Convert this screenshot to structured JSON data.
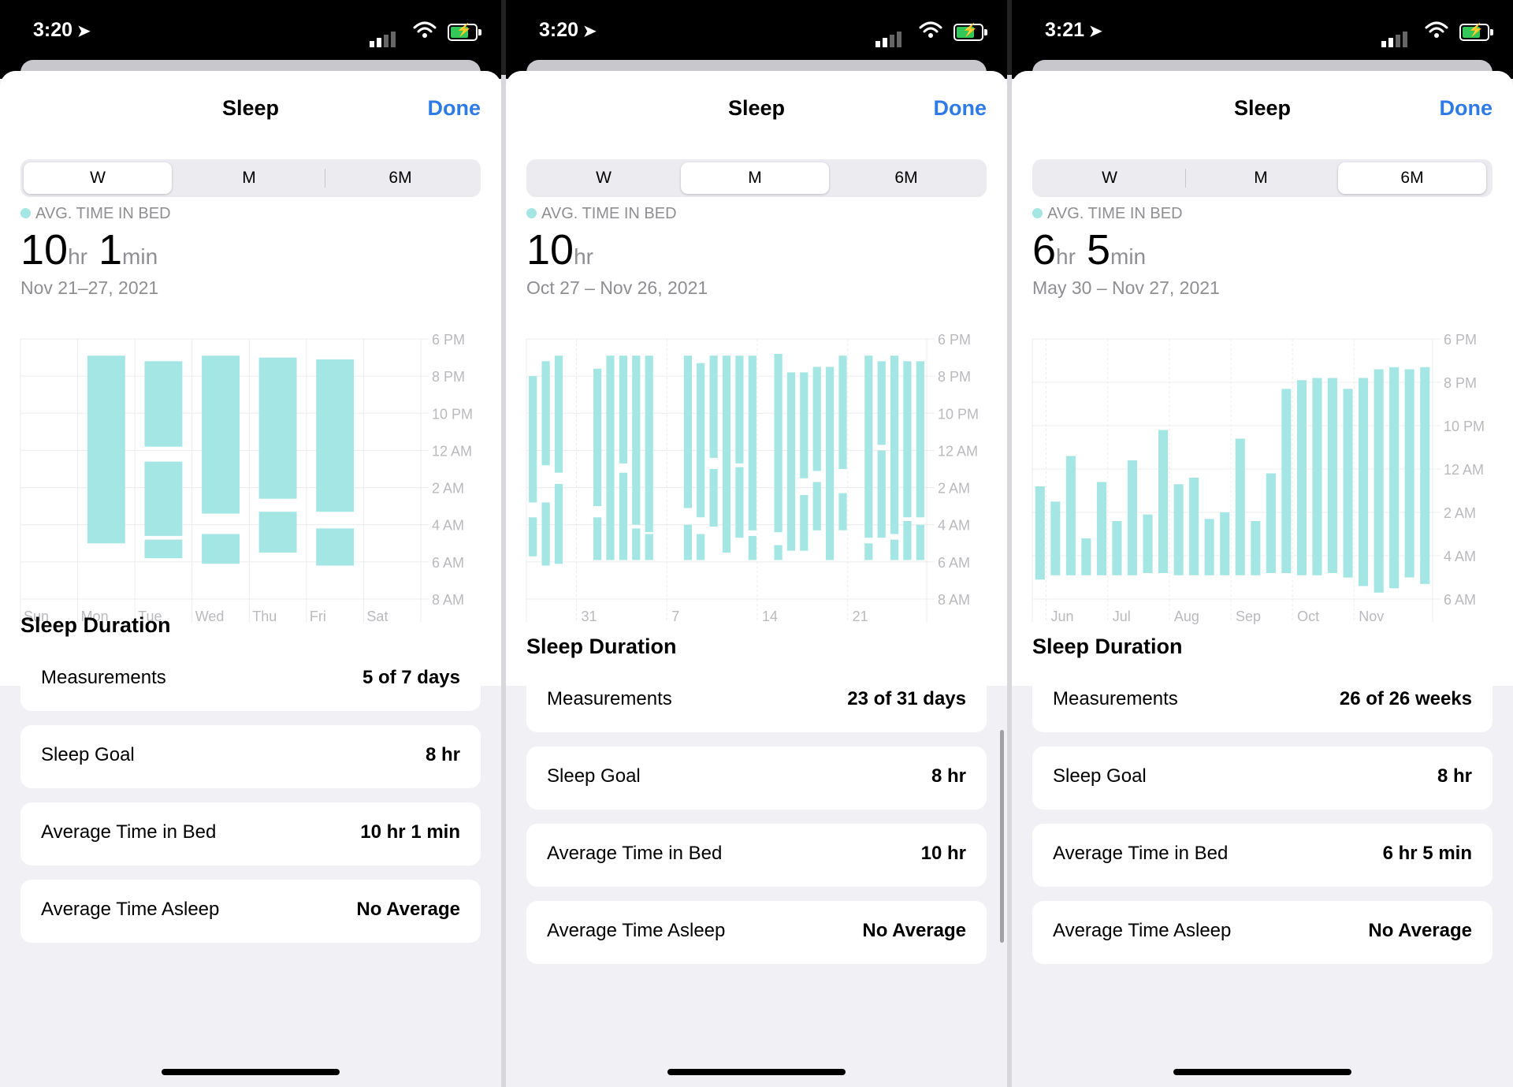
{
  "screens": [
    {
      "status_time": "3:20",
      "nav_title": "Sleep",
      "done_label": "Done",
      "segments": [
        "W",
        "M",
        "6M"
      ],
      "active_segment": "W",
      "avg_label": "AVG. TIME IN BED",
      "avg_value": [
        {
          "num": "10",
          "unit": "hr"
        },
        {
          "num": "1",
          "unit": "min"
        }
      ],
      "date_range": "Nov 21–27, 2021",
      "chart_data": {
        "type": "bar",
        "subtype": "floating-range",
        "series": [],
        "y_axis_labels": [
          "6 PM",
          "8 PM",
          "10 PM",
          "12 AM",
          "2 AM",
          "4 AM",
          "6 AM",
          "8 AM"
        ],
        "y_axis_hours_since_6pm": [
          0,
          2,
          4,
          6,
          8,
          10,
          12,
          14
        ],
        "ylim_hours_since_6pm": [
          0,
          14
        ],
        "x_tick_labels": [
          "Sun",
          "Mon",
          "Tue",
          "Wed",
          "Thu",
          "Fri",
          "Sat"
        ],
        "x_tick_positions": [
          0,
          1,
          2,
          3,
          4,
          5,
          6
        ],
        "x_count": 7,
        "bar_color": "#a4e6e3",
        "bars": [
          {
            "x": 1,
            "start": 0.9,
            "end": 11.0
          },
          {
            "x": 2,
            "start": 1.2,
            "end": 5.8
          },
          {
            "x": 2,
            "start": 6.6,
            "end": 10.6
          },
          {
            "x": 2,
            "start": 10.8,
            "end": 11.8
          },
          {
            "x": 3,
            "start": 0.9,
            "end": 9.4
          },
          {
            "x": 3,
            "start": 10.5,
            "end": 12.1
          },
          {
            "x": 4,
            "start": 1.0,
            "end": 8.6
          },
          {
            "x": 4,
            "start": 9.3,
            "end": 11.5
          },
          {
            "x": 5,
            "start": 1.1,
            "end": 9.3
          },
          {
            "x": 5,
            "start": 10.2,
            "end": 12.2
          }
        ],
        "grid": true
      },
      "section_title": "Sleep Duration",
      "rows": [
        {
          "label": "Measurements",
          "value": "5 of 7 days"
        },
        {
          "label": "Sleep Goal",
          "value": "8 hr"
        },
        {
          "label": "Average Time in Bed",
          "value": "10 hr 1 min"
        },
        {
          "label": "Average Time Asleep",
          "value": "No Average"
        }
      ]
    },
    {
      "status_time": "3:20",
      "nav_title": "Sleep",
      "done_label": "Done",
      "segments": [
        "W",
        "M",
        "6M"
      ],
      "active_segment": "M",
      "avg_label": "AVG. TIME IN BED",
      "avg_value": [
        {
          "num": "10",
          "unit": "hr"
        }
      ],
      "date_range": "Oct 27 – Nov 26, 2021",
      "chart_data": {
        "type": "bar",
        "subtype": "floating-range",
        "series": [],
        "y_axis_labels": [
          "6 PM",
          "8 PM",
          "10 PM",
          "12 AM",
          "2 AM",
          "4 AM",
          "6 AM",
          "8 AM"
        ],
        "y_axis_hours_since_6pm": [
          0,
          2,
          4,
          6,
          8,
          10,
          12,
          14
        ],
        "ylim_hours_since_6pm": [
          0,
          14
        ],
        "x_tick_labels": [
          "31",
          "7",
          "14",
          "21"
        ],
        "x_tick_positions": [
          4,
          11,
          18,
          25
        ],
        "x_count": 31,
        "bar_color": "#a4e6e3",
        "bars": [
          {
            "x": 0,
            "start": 2.0,
            "end": 8.8
          },
          {
            "x": 0,
            "start": 9.6,
            "end": 11.7
          },
          {
            "x": 1,
            "start": 1.2,
            "end": 6.8
          },
          {
            "x": 1,
            "start": 8.8,
            "end": 12.2
          },
          {
            "x": 2,
            "start": 0.9,
            "end": 7.2
          },
          {
            "x": 2,
            "start": 7.8,
            "end": 12.1
          },
          {
            "x": 5,
            "start": 1.6,
            "end": 9.0
          },
          {
            "x": 5,
            "start": 9.6,
            "end": 11.9
          },
          {
            "x": 6,
            "start": 0.9,
            "end": 11.9
          },
          {
            "x": 7,
            "start": 0.9,
            "end": 6.7
          },
          {
            "x": 7,
            "start": 7.2,
            "end": 11.9
          },
          {
            "x": 8,
            "start": 0.9,
            "end": 10.0
          },
          {
            "x": 8,
            "start": 10.2,
            "end": 11.9
          },
          {
            "x": 9,
            "start": 0.9,
            "end": 10.4
          },
          {
            "x": 9,
            "start": 10.5,
            "end": 11.9
          },
          {
            "x": 12,
            "start": 0.9,
            "end": 9.1
          },
          {
            "x": 12,
            "start": 10.0,
            "end": 11.9
          },
          {
            "x": 13,
            "start": 1.3,
            "end": 9.6
          },
          {
            "x": 13,
            "start": 10.5,
            "end": 11.9
          },
          {
            "x": 14,
            "start": 0.9,
            "end": 6.4
          },
          {
            "x": 14,
            "start": 7.0,
            "end": 10.1
          },
          {
            "x": 15,
            "start": 0.9,
            "end": 11.5
          },
          {
            "x": 16,
            "start": 0.9,
            "end": 6.7
          },
          {
            "x": 16,
            "start": 6.9,
            "end": 10.7
          },
          {
            "x": 17,
            "start": 0.9,
            "end": 10.3
          },
          {
            "x": 17,
            "start": 10.6,
            "end": 11.9
          },
          {
            "x": 19,
            "start": 0.8,
            "end": 10.4
          },
          {
            "x": 19,
            "start": 11.1,
            "end": 11.9
          },
          {
            "x": 20,
            "start": 1.8,
            "end": 11.4
          },
          {
            "x": 21,
            "start": 1.8,
            "end": 7.5
          },
          {
            "x": 21,
            "start": 8.4,
            "end": 11.4
          },
          {
            "x": 22,
            "start": 1.5,
            "end": 7.1
          },
          {
            "x": 22,
            "start": 7.7,
            "end": 10.3
          },
          {
            "x": 23,
            "start": 1.5,
            "end": 11.9
          },
          {
            "x": 24,
            "start": 0.9,
            "end": 7.0
          },
          {
            "x": 24,
            "start": 8.3,
            "end": 10.3
          },
          {
            "x": 26,
            "start": 0.9,
            "end": 10.7
          },
          {
            "x": 26,
            "start": 11.0,
            "end": 11.9
          },
          {
            "x": 27,
            "start": 1.2,
            "end": 5.7
          },
          {
            "x": 27,
            "start": 6.0,
            "end": 10.7
          },
          {
            "x": 28,
            "start": 0.9,
            "end": 10.5
          },
          {
            "x": 28,
            "start": 10.8,
            "end": 11.9
          },
          {
            "x": 29,
            "start": 1.2,
            "end": 9.6
          },
          {
            "x": 29,
            "start": 9.8,
            "end": 11.9
          },
          {
            "x": 30,
            "start": 1.2,
            "end": 9.6
          },
          {
            "x": 30,
            "start": 10.0,
            "end": 11.9
          }
        ],
        "grid": true
      },
      "section_title": "Sleep Duration",
      "rows": [
        {
          "label": "Measurements",
          "value": "23 of 31 days"
        },
        {
          "label": "Sleep Goal",
          "value": "8 hr"
        },
        {
          "label": "Average Time in Bed",
          "value": "10 hr"
        },
        {
          "label": "Average Time Asleep",
          "value": "No Average"
        }
      ]
    },
    {
      "status_time": "3:21",
      "nav_title": "Sleep",
      "done_label": "Done",
      "segments": [
        "W",
        "M",
        "6M"
      ],
      "active_segment": "6M",
      "avg_label": "AVG. TIME IN BED",
      "avg_value": [
        {
          "num": "6",
          "unit": "hr"
        },
        {
          "num": "5",
          "unit": "min"
        }
      ],
      "date_range": "May 30 – Nov 27, 2021",
      "chart_data": {
        "type": "bar",
        "subtype": "floating-range",
        "series": [],
        "y_axis_labels": [
          "6 PM",
          "8 PM",
          "10 PM",
          "12 AM",
          "2 AM",
          "4 AM",
          "6 AM"
        ],
        "y_axis_hours_since_6pm": [
          0,
          2,
          4,
          6,
          8,
          10,
          12
        ],
        "ylim_hours_since_6pm": [
          0,
          12
        ],
        "x_tick_labels": [
          "Jun",
          "Jul",
          "Aug",
          "Sep",
          "Oct",
          "Nov"
        ],
        "x_tick_positions": [
          1,
          5,
          9,
          13,
          17,
          21
        ],
        "x_count": 26,
        "bar_color": "#a4e6e3",
        "bars": [
          {
            "x": 0,
            "start": 6.8,
            "end": 11.1
          },
          {
            "x": 1,
            "start": 7.5,
            "end": 10.9
          },
          {
            "x": 2,
            "start": 5.4,
            "end": 10.9
          },
          {
            "x": 3,
            "start": 9.2,
            "end": 10.9
          },
          {
            "x": 4,
            "start": 6.6,
            "end": 10.9
          },
          {
            "x": 5,
            "start": 8.4,
            "end": 10.9
          },
          {
            "x": 6,
            "start": 5.6,
            "end": 10.9
          },
          {
            "x": 7,
            "start": 8.1,
            "end": 10.8
          },
          {
            "x": 8,
            "start": 4.2,
            "end": 10.8
          },
          {
            "x": 9,
            "start": 6.7,
            "end": 10.9
          },
          {
            "x": 10,
            "start": 6.4,
            "end": 10.9
          },
          {
            "x": 11,
            "start": 8.3,
            "end": 10.9
          },
          {
            "x": 12,
            "start": 8.0,
            "end": 10.9
          },
          {
            "x": 13,
            "start": 4.6,
            "end": 10.9
          },
          {
            "x": 14,
            "start": 8.4,
            "end": 10.9
          },
          {
            "x": 15,
            "start": 6.2,
            "end": 10.8
          },
          {
            "x": 16,
            "start": 2.3,
            "end": 10.8
          },
          {
            "x": 17,
            "start": 1.9,
            "end": 10.9
          },
          {
            "x": 18,
            "start": 1.8,
            "end": 10.9
          },
          {
            "x": 19,
            "start": 1.8,
            "end": 10.8
          },
          {
            "x": 20,
            "start": 2.3,
            "end": 11.0
          },
          {
            "x": 21,
            "start": 1.8,
            "end": 11.4
          },
          {
            "x": 22,
            "start": 1.4,
            "end": 11.7
          },
          {
            "x": 23,
            "start": 1.3,
            "end": 11.5
          },
          {
            "x": 24,
            "start": 1.4,
            "end": 11.0
          },
          {
            "x": 25,
            "start": 1.3,
            "end": 11.3
          }
        ],
        "grid": true
      },
      "section_title": "Sleep Duration",
      "rows": [
        {
          "label": "Measurements",
          "value": "26 of 26 weeks"
        },
        {
          "label": "Sleep Goal",
          "value": "8 hr"
        },
        {
          "label": "Average Time in Bed",
          "value": "6 hr 5 min"
        },
        {
          "label": "Average Time Asleep",
          "value": "No Average"
        }
      ]
    }
  ]
}
